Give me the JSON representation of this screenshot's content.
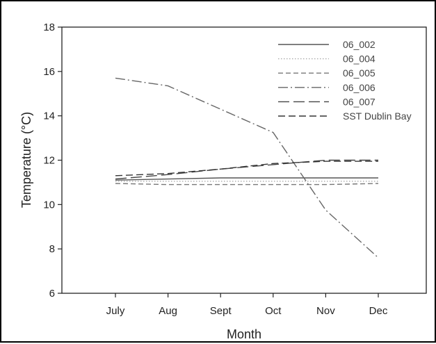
{
  "chart_data": {
    "type": "line",
    "categories": [
      "July",
      "Aug",
      "Sept",
      "Oct",
      "Nov",
      "Dec"
    ],
    "xlabel": "Month",
    "ylabel": "Temperature (°C)",
    "ylim": [
      6,
      18
    ],
    "yticks": [
      6,
      8,
      10,
      12,
      14,
      16,
      18
    ],
    "grid": false,
    "legend": "top-right",
    "series": [
      {
        "name": "06_002",
        "values": [
          11.1,
          11.15,
          11.2,
          11.2,
          11.2,
          11.2
        ],
        "color": "#555555",
        "dash": ""
      },
      {
        "name": "06_004",
        "values": [
          11.05,
          11.05,
          11.05,
          11.05,
          11.05,
          11.05
        ],
        "color": "#aaaaaa",
        "dash": "1.5,2.5"
      },
      {
        "name": "06_005",
        "values": [
          10.95,
          10.9,
          10.9,
          10.9,
          10.9,
          10.95
        ],
        "color": "#777777",
        "dash": "7,4"
      },
      {
        "name": "06_006",
        "values": [
          15.7,
          15.35,
          14.3,
          13.25,
          9.75,
          7.6
        ],
        "color": "#666666",
        "dash": "14,4,2,4"
      },
      {
        "name": "06_007",
        "values": [
          11.15,
          11.35,
          11.6,
          11.8,
          12.0,
          12.0
        ],
        "color": "#444444",
        "dash": "16,6"
      },
      {
        "name": "SST Dublin Bay",
        "values": [
          11.3,
          11.4,
          11.6,
          11.85,
          11.95,
          11.95
        ],
        "color": "#333333",
        "dash": "10,5"
      }
    ]
  }
}
